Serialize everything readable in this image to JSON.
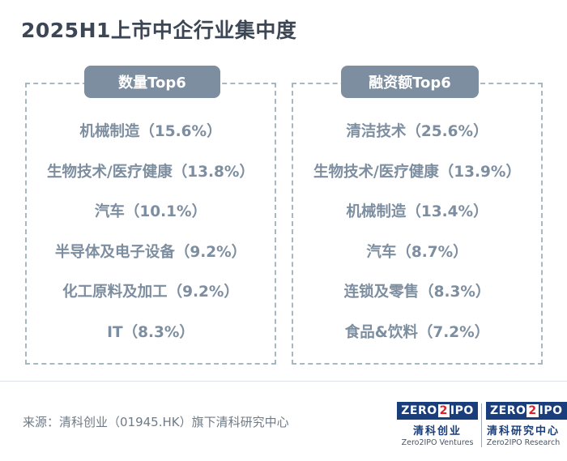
{
  "title": "2025H1上市中企行业集中度",
  "left": {
    "header": "数量Top6",
    "items": [
      "机械制造（15.6%）",
      "生物技术/医疗健康（13.8%）",
      "汽车（10.1%）",
      "半导体及电子设备（9.2%）",
      "化工原料及加工（9.2%）",
      "IT（8.3%）"
    ]
  },
  "right": {
    "header": "融资额Top6",
    "items": [
      "清洁技术（25.6%）",
      "生物技术/医疗健康（13.9%）",
      "机械制造（13.4%）",
      "汽车（8.7%）",
      "连锁及零售（8.3%）",
      "食品&饮料（7.2%）"
    ]
  },
  "source": "来源：清科创业（01945.HK）旗下清科研究中心",
  "logos": [
    {
      "mark_a": "ZERO",
      "mark_b": "2",
      "mark_c": "IPO",
      "cn": "清科创业",
      "en": "Zero2IPO Ventures"
    },
    {
      "mark_a": "ZERO",
      "mark_b": "2",
      "mark_c": "IPO",
      "cn": "清科研究中心",
      "en": "Zero2IPO Research"
    }
  ],
  "colors": {
    "title": "#3d4654",
    "accent": "#7d8ea0",
    "border": "#a7b8c2",
    "brand_blue": "#1a3d7c",
    "brand_red": "#d8232a"
  }
}
